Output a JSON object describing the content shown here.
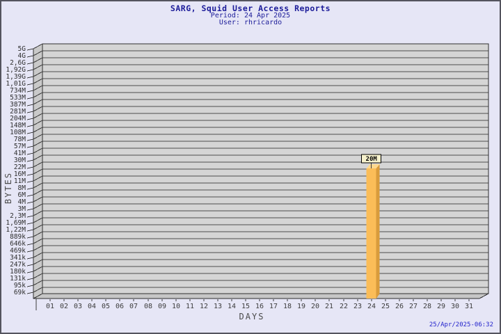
{
  "header": {
    "title": "SARG, Squid User Access Reports",
    "period": "Period: 24 Apr 2025",
    "user": "User: rhricardo"
  },
  "footer": {
    "generated": "25/Apr/2025-06:32"
  },
  "chart_data": {
    "type": "bar",
    "title": "SARG, Squid User Access Reports",
    "subtitle": "Period: 24 Apr 2025 — User: rhricardo",
    "xlabel": "DAYS",
    "ylabel": "BYTES",
    "grid": "horizontal",
    "legend": "none",
    "style": "3d-bars",
    "categories": [
      "01",
      "02",
      "03",
      "04",
      "05",
      "06",
      "07",
      "08",
      "09",
      "10",
      "11",
      "12",
      "13",
      "14",
      "15",
      "16",
      "17",
      "18",
      "19",
      "20",
      "21",
      "22",
      "23",
      "24",
      "25",
      "26",
      "27",
      "28",
      "29",
      "30",
      "31"
    ],
    "y_ticks": [
      "5G",
      "4G",
      "2,6G",
      "1,92G",
      "1,39G",
      "1,01G",
      "734M",
      "533M",
      "387M",
      "281M",
      "204M",
      "148M",
      "108M",
      "78M",
      "57M",
      "41M",
      "30M",
      "22M",
      "16M",
      "11M",
      "8M",
      "6M",
      "4M",
      "3M",
      "2,3M",
      "1,69M",
      "1,22M",
      "889k",
      "646k",
      "469k",
      "341k",
      "247k",
      "180k",
      "131k",
      "95k",
      "69k"
    ],
    "series": [
      {
        "name": "bytes",
        "values_bytes": [
          0,
          0,
          0,
          0,
          0,
          0,
          0,
          0,
          0,
          0,
          0,
          0,
          0,
          0,
          0,
          0,
          0,
          0,
          0,
          0,
          0,
          0,
          0,
          20971520,
          0,
          0,
          0,
          0,
          0,
          0,
          0
        ],
        "points": [
          {
            "day": "24",
            "value_label": "20M",
            "value_bytes": 20971520
          }
        ]
      }
    ],
    "colors": {
      "bar_front": "#fbbd58",
      "bar_side": "#d99c3c",
      "bar_top": "#fdd88e",
      "annotation_bg": "#f7f2cc",
      "plot_bg": "#d5d5d5",
      "wall": "#c9c9c9",
      "floor": "#c6c6c6",
      "grid_line": "#4d4d4d",
      "title_color": "#1b1b99",
      "timestamp_color": "#2222cc",
      "page_bg": "#e6e6f6"
    }
  }
}
